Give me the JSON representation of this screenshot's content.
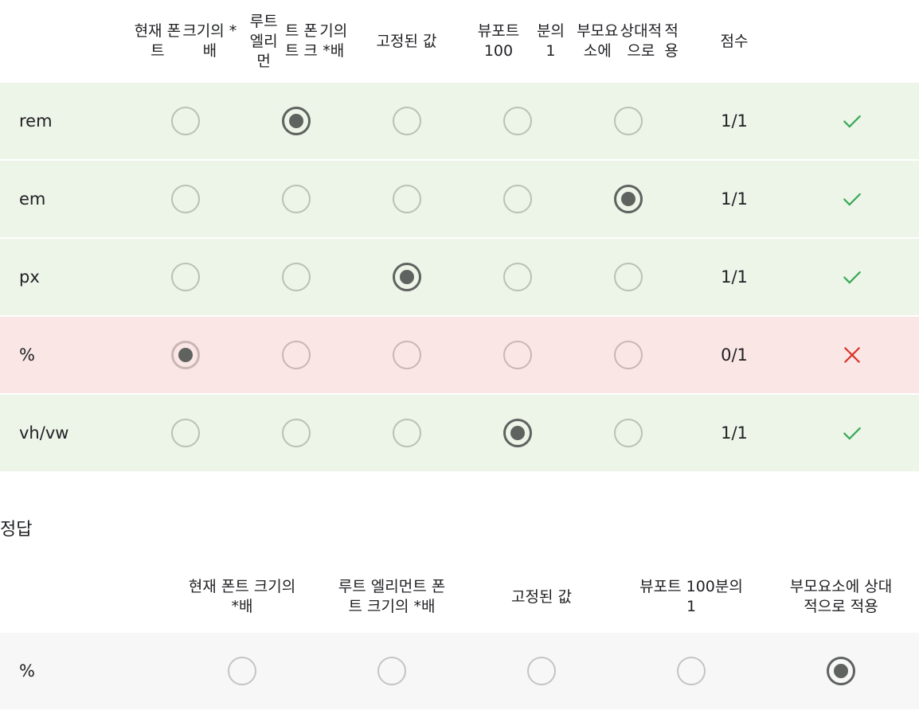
{
  "grid": {
    "headers": [
      [
        "현재 폰트",
        "크기의 *배"
      ],
      [
        "루트 엘리먼",
        "트 폰트 크",
        "기의 *배"
      ],
      [
        "고정된 값"
      ],
      [
        "뷰포트 100",
        "분의 1"
      ],
      [
        "부모요소에",
        "상대적으로",
        "적용"
      ]
    ],
    "score_header": "점수",
    "rows": [
      {
        "label": "rem",
        "selected": 1,
        "score": "1/1",
        "result": "correct"
      },
      {
        "label": "em",
        "selected": 4,
        "score": "1/1",
        "result": "correct"
      },
      {
        "label": "px",
        "selected": 2,
        "score": "1/1",
        "result": "correct"
      },
      {
        "label": "%",
        "selected": 0,
        "score": "0/1",
        "result": "incorrect"
      },
      {
        "label": "vh/vw",
        "selected": 3,
        "score": "1/1",
        "result": "correct"
      }
    ]
  },
  "answer": {
    "title": "정답",
    "headers": [
      [
        "현재 폰트 크기의",
        "*배"
      ],
      [
        "루트 엘리먼트 폰",
        "트 크기의 *배"
      ],
      [
        "고정된 값"
      ],
      [
        "뷰포트 100분의",
        "1"
      ],
      [
        "부모요소에 상대",
        "적으로 적용"
      ]
    ],
    "rows": [
      {
        "label": "%",
        "selected": 4
      }
    ]
  },
  "colors": {
    "correct_bg": "#edf4e8",
    "incorrect_bg": "#fae6e5",
    "check": "#34a853",
    "cross": "#d93025",
    "radio_checked": "#5f6360"
  },
  "icons": {
    "correct": "check-icon",
    "incorrect": "close-icon"
  }
}
